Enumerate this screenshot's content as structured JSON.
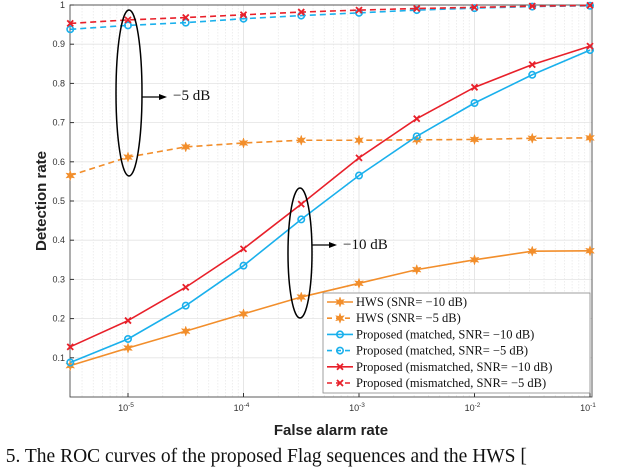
{
  "chart_data": {
    "type": "line",
    "xscale": "log",
    "xlim": [
      3.162e-06,
      0.1
    ],
    "ylim": [
      0,
      1
    ],
    "xlabel": "False alarm rate",
    "ylabel": "Detection rate",
    "grid": true,
    "legend_position": "bottom-right",
    "x": [
      3.162e-06,
      1e-05,
      3.162e-05,
      0.0001,
      0.0003162,
      0.001,
      0.003162,
      0.01,
      0.03162,
      0.1
    ],
    "x_ticks": [
      {
        "value": 1e-05,
        "base": "10",
        "exp": "-5"
      },
      {
        "value": 0.0001,
        "base": "10",
        "exp": "-4"
      },
      {
        "value": 0.001,
        "base": "10",
        "exp": "-3"
      },
      {
        "value": 0.01,
        "base": "10",
        "exp": "-2"
      },
      {
        "value": 0.1,
        "base": "10",
        "exp": "-1"
      }
    ],
    "y_ticks": [
      "0.1",
      "0.2",
      "0.3",
      "0.4",
      "0.5",
      "0.6",
      "0.7",
      "0.8",
      "0.9",
      "1"
    ],
    "series": [
      {
        "name": "HWS (SNR= −10 dB)",
        "color": "#f28e2b",
        "dash": false,
        "marker": "star",
        "values": [
          0.08,
          0.125,
          0.168,
          0.212,
          0.255,
          0.29,
          0.325,
          0.35,
          0.372,
          0.373
        ]
      },
      {
        "name": "HWS (SNR= −5 dB)",
        "color": "#f28e2b",
        "dash": true,
        "marker": "star",
        "values": [
          0.565,
          0.612,
          0.638,
          0.648,
          0.655,
          0.655,
          0.656,
          0.657,
          0.66,
          0.661
        ]
      },
      {
        "name": "Proposed (matched, SNR= −10 dB)",
        "color": "#1ab0ec",
        "dash": false,
        "marker": "circle",
        "values": [
          0.088,
          0.148,
          0.233,
          0.335,
          0.453,
          0.565,
          0.665,
          0.75,
          0.822,
          0.885
        ]
      },
      {
        "name": "Proposed (matched, SNR= −5 dB)",
        "color": "#1ab0ec",
        "dash": true,
        "marker": "circle",
        "values": [
          0.938,
          0.948,
          0.955,
          0.965,
          0.973,
          0.98,
          0.987,
          0.992,
          0.996,
          0.998
        ]
      },
      {
        "name": "Proposed (mismatched, SNR= −10 dB)",
        "color": "#e8202a",
        "dash": false,
        "marker": "x",
        "values": [
          0.128,
          0.195,
          0.28,
          0.378,
          0.492,
          0.61,
          0.71,
          0.79,
          0.848,
          0.895
        ]
      },
      {
        "name": "Proposed (mismatched, SNR= −5 dB)",
        "color": "#e8202a",
        "dash": true,
        "marker": "x",
        "values": [
          0.953,
          0.962,
          0.968,
          0.975,
          0.982,
          0.987,
          0.991,
          0.994,
          0.997,
          0.999
        ]
      }
    ],
    "annotations": [
      "−5 dB",
      "−10 dB"
    ]
  },
  "caption": ". 5. The ROC curves of the proposed Flag sequences and the HWS ["
}
